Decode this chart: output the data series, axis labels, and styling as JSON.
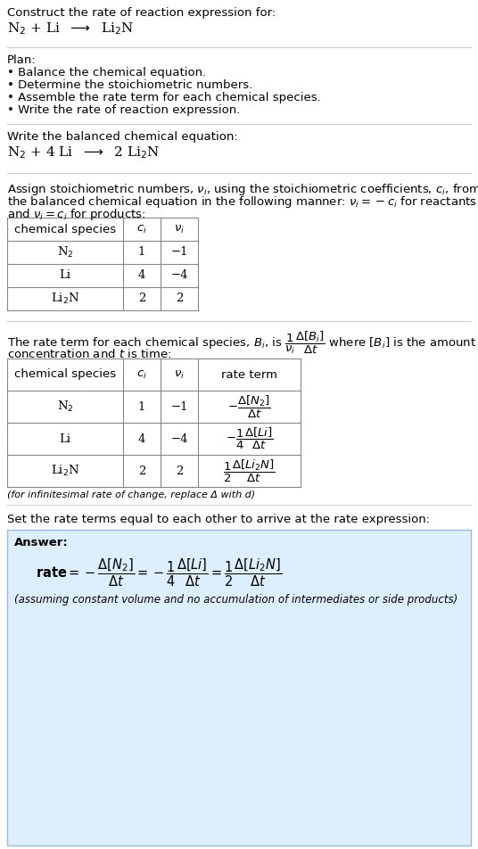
{
  "bg_color": "#ffffff",
  "answer_bg_color": "#ddeeff",
  "answer_border_color": "#99bbdd",
  "separator_color": "#cccccc",
  "title_text": "Construct the rate of reaction expression for:",
  "plan_header": "Plan:",
  "plan_items": [
    "• Balance the chemical equation.",
    "• Determine the stoichiometric numbers.",
    "• Assemble the rate term for each chemical species.",
    "• Write the rate of reaction expression."
  ],
  "balanced_header": "Write the balanced chemical equation:",
  "stoich_line1": "Assign stoichiometric numbers, $\\nu_i$, using the stoichiometric coefficients, $c_i$, from",
  "stoich_line2": "the balanced chemical equation in the following manner: $\\nu_i = -c_i$ for reactants",
  "stoich_line3": "and $\\nu_i = c_i$ for products:",
  "table1_species": [
    "N$_2$",
    "Li",
    "Li$_2$N"
  ],
  "table1_ci": [
    "1",
    "4",
    "2"
  ],
  "table1_vi": [
    "−1",
    "−4",
    "2"
  ],
  "rate_line1": "The rate term for each chemical species, $B_i$, is $\\dfrac{1}{\\nu_i}\\dfrac{\\Delta[B_i]}{\\Delta t}$ where $[B_i]$ is the amount",
  "rate_line2": "concentration and $t$ is time:",
  "table2_species": [
    "N$_2$",
    "Li",
    "Li$_2$N"
  ],
  "table2_ci": [
    "1",
    "4",
    "2"
  ],
  "table2_vi": [
    "−1",
    "−4",
    "2"
  ],
  "table2_rate": [
    "$-\\dfrac{\\Delta[N_2]}{\\Delta t}$",
    "$-\\dfrac{1}{4}\\dfrac{\\Delta[Li]}{\\Delta t}$",
    "$\\dfrac{1}{2}\\dfrac{\\Delta[Li_2N]}{\\Delta t}$"
  ],
  "infinitesimal_note": "(for infinitesimal rate of change, replace Δ with d)",
  "set_rate_text": "Set the rate terms equal to each other to arrive at the rate expression:",
  "answer_label": "Answer:",
  "answer_note": "(assuming constant volume and no accumulation of intermediates or side products)"
}
